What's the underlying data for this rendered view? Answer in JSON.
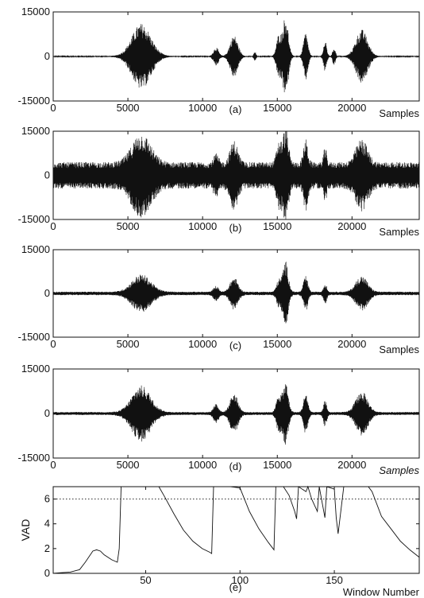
{
  "figure": {
    "background": "#ffffff",
    "ink": "#111111"
  },
  "chart_data": [
    {
      "type": "line",
      "panel_label": "(a)",
      "xlabel": "Samples",
      "ylabel": "",
      "xlim": [
        0,
        24500
      ],
      "ylim": [
        -15000,
        15000
      ],
      "x_ticks": [
        0,
        5000,
        10000,
        15000,
        20000
      ],
      "y_ticks": [
        -15000,
        0,
        15000
      ],
      "y_tick_labels": [
        "-15000",
        "0",
        "15000"
      ],
      "noise_amp": 150,
      "bursts": [
        {
          "center": 5900,
          "width": 1050,
          "amp": 11000
        },
        {
          "center": 10900,
          "width": 280,
          "amp": 3000
        },
        {
          "center": 12100,
          "width": 430,
          "amp": 7000
        },
        {
          "center": 13500,
          "width": 120,
          "amp": 1500
        },
        {
          "center": 15100,
          "width": 260,
          "amp": 7000
        },
        {
          "center": 15550,
          "width": 300,
          "amp": 13500
        },
        {
          "center": 16900,
          "width": 240,
          "amp": 8000
        },
        {
          "center": 18200,
          "width": 180,
          "amp": 5000
        },
        {
          "center": 18800,
          "width": 150,
          "amp": 3000
        },
        {
          "center": 20650,
          "width": 650,
          "amp": 9000
        }
      ]
    },
    {
      "type": "line",
      "panel_label": "(b)",
      "xlabel": "Samples",
      "ylabel": "",
      "xlim": [
        0,
        24500
      ],
      "ylim": [
        -15000,
        15000
      ],
      "x_ticks": [
        0,
        5000,
        10000,
        15000,
        20000
      ],
      "y_ticks": [
        -15000,
        0,
        15000
      ],
      "y_tick_labels": [
        "-15000",
        "0",
        "15000"
      ],
      "noise_amp": 4500,
      "bursts": [
        {
          "center": 5900,
          "width": 1050,
          "amp": 10000
        },
        {
          "center": 10900,
          "width": 280,
          "amp": 3000
        },
        {
          "center": 12100,
          "width": 430,
          "amp": 7500
        },
        {
          "center": 15100,
          "width": 260,
          "amp": 7000
        },
        {
          "center": 15550,
          "width": 300,
          "amp": 12000
        },
        {
          "center": 16900,
          "width": 240,
          "amp": 8000
        },
        {
          "center": 18200,
          "width": 180,
          "amp": 5000
        },
        {
          "center": 20650,
          "width": 650,
          "amp": 8000
        }
      ]
    },
    {
      "type": "line",
      "panel_label": "(c)",
      "xlabel": "Samples",
      "ylabel": "",
      "xlim": [
        0,
        24500
      ],
      "ylim": [
        -15000,
        15000
      ],
      "x_ticks": [
        0,
        5000,
        10000,
        15000,
        20000
      ],
      "y_ticks": [
        -15000,
        0,
        15000
      ],
      "y_tick_labels": [
        "-15000",
        "0",
        "15000"
      ],
      "noise_amp": 600,
      "bursts": [
        {
          "center": 5900,
          "width": 1050,
          "amp": 6000
        },
        {
          "center": 10900,
          "width": 280,
          "amp": 2000
        },
        {
          "center": 12100,
          "width": 430,
          "amp": 5000
        },
        {
          "center": 15100,
          "width": 260,
          "amp": 4000
        },
        {
          "center": 15550,
          "width": 300,
          "amp": 10500
        },
        {
          "center": 16900,
          "width": 240,
          "amp": 5500
        },
        {
          "center": 18200,
          "width": 180,
          "amp": 3000
        },
        {
          "center": 20650,
          "width": 650,
          "amp": 5500
        }
      ]
    },
    {
      "type": "line",
      "panel_label": "(d)",
      "xlabel": "Samples",
      "ylabel": "",
      "xlim": [
        0,
        24500
      ],
      "ylim": [
        -15000,
        15000
      ],
      "x_ticks": [
        0,
        5000,
        10000,
        15000,
        20000
      ],
      "y_ticks": [
        -15000,
        0,
        15000
      ],
      "y_tick_labels": [
        "-15000",
        "0",
        "15000"
      ],
      "noise_amp": 500,
      "bursts": [
        {
          "center": 5900,
          "width": 1050,
          "amp": 9000
        },
        {
          "center": 10900,
          "width": 280,
          "amp": 3000
        },
        {
          "center": 12100,
          "width": 430,
          "amp": 6500
        },
        {
          "center": 15100,
          "width": 260,
          "amp": 6000
        },
        {
          "center": 15550,
          "width": 300,
          "amp": 10000
        },
        {
          "center": 16900,
          "width": 240,
          "amp": 6500
        },
        {
          "center": 18200,
          "width": 180,
          "amp": 4000
        },
        {
          "center": 20650,
          "width": 650,
          "amp": 7000
        }
      ]
    },
    {
      "type": "line",
      "panel_label": "(e)",
      "xlabel": "Window Number",
      "ylabel": "VAD",
      "xlim": [
        1,
        195
      ],
      "ylim": [
        0,
        7
      ],
      "x_ticks": [
        50,
        100,
        150
      ],
      "y_ticks": [
        0,
        2,
        4,
        6
      ],
      "threshold": 6,
      "series": [
        {
          "x": [
            1,
            5,
            10,
            15,
            18,
            22,
            24,
            26,
            28,
            32,
            35,
            36,
            37,
            40,
            45,
            50,
            55,
            57,
            60,
            65,
            70,
            75,
            80,
            84,
            85,
            86,
            90,
            95,
            100,
            105,
            110,
            115,
            118,
            119,
            120,
            123,
            126,
            129,
            130,
            131,
            135,
            136,
            138,
            141,
            142,
            145,
            146,
            150,
            151,
            152,
            155,
            158,
            160,
            163,
            166,
            168,
            170,
            175,
            180,
            185,
            190,
            195
          ],
          "y": [
            0.0,
            0.05,
            0.1,
            0.3,
            0.9,
            1.8,
            1.9,
            1.8,
            1.5,
            1.1,
            0.9,
            2.0,
            7.0,
            7.0,
            7.0,
            7.0,
            7.0,
            7.0,
            6.2,
            4.8,
            3.5,
            2.6,
            2.0,
            1.7,
            1.6,
            7.0,
            7.0,
            7.0,
            6.9,
            5.0,
            3.6,
            2.5,
            1.9,
            7.0,
            7.0,
            7.0,
            6.3,
            5.0,
            4.4,
            7.0,
            6.6,
            7.0,
            6.0,
            5.0,
            7.0,
            4.5,
            7.0,
            6.8,
            4.5,
            3.2,
            7.0,
            7.0,
            7.0,
            7.0,
            7.0,
            7.0,
            6.6,
            4.6,
            3.6,
            2.6,
            1.9,
            1.3
          ]
        }
      ]
    }
  ]
}
